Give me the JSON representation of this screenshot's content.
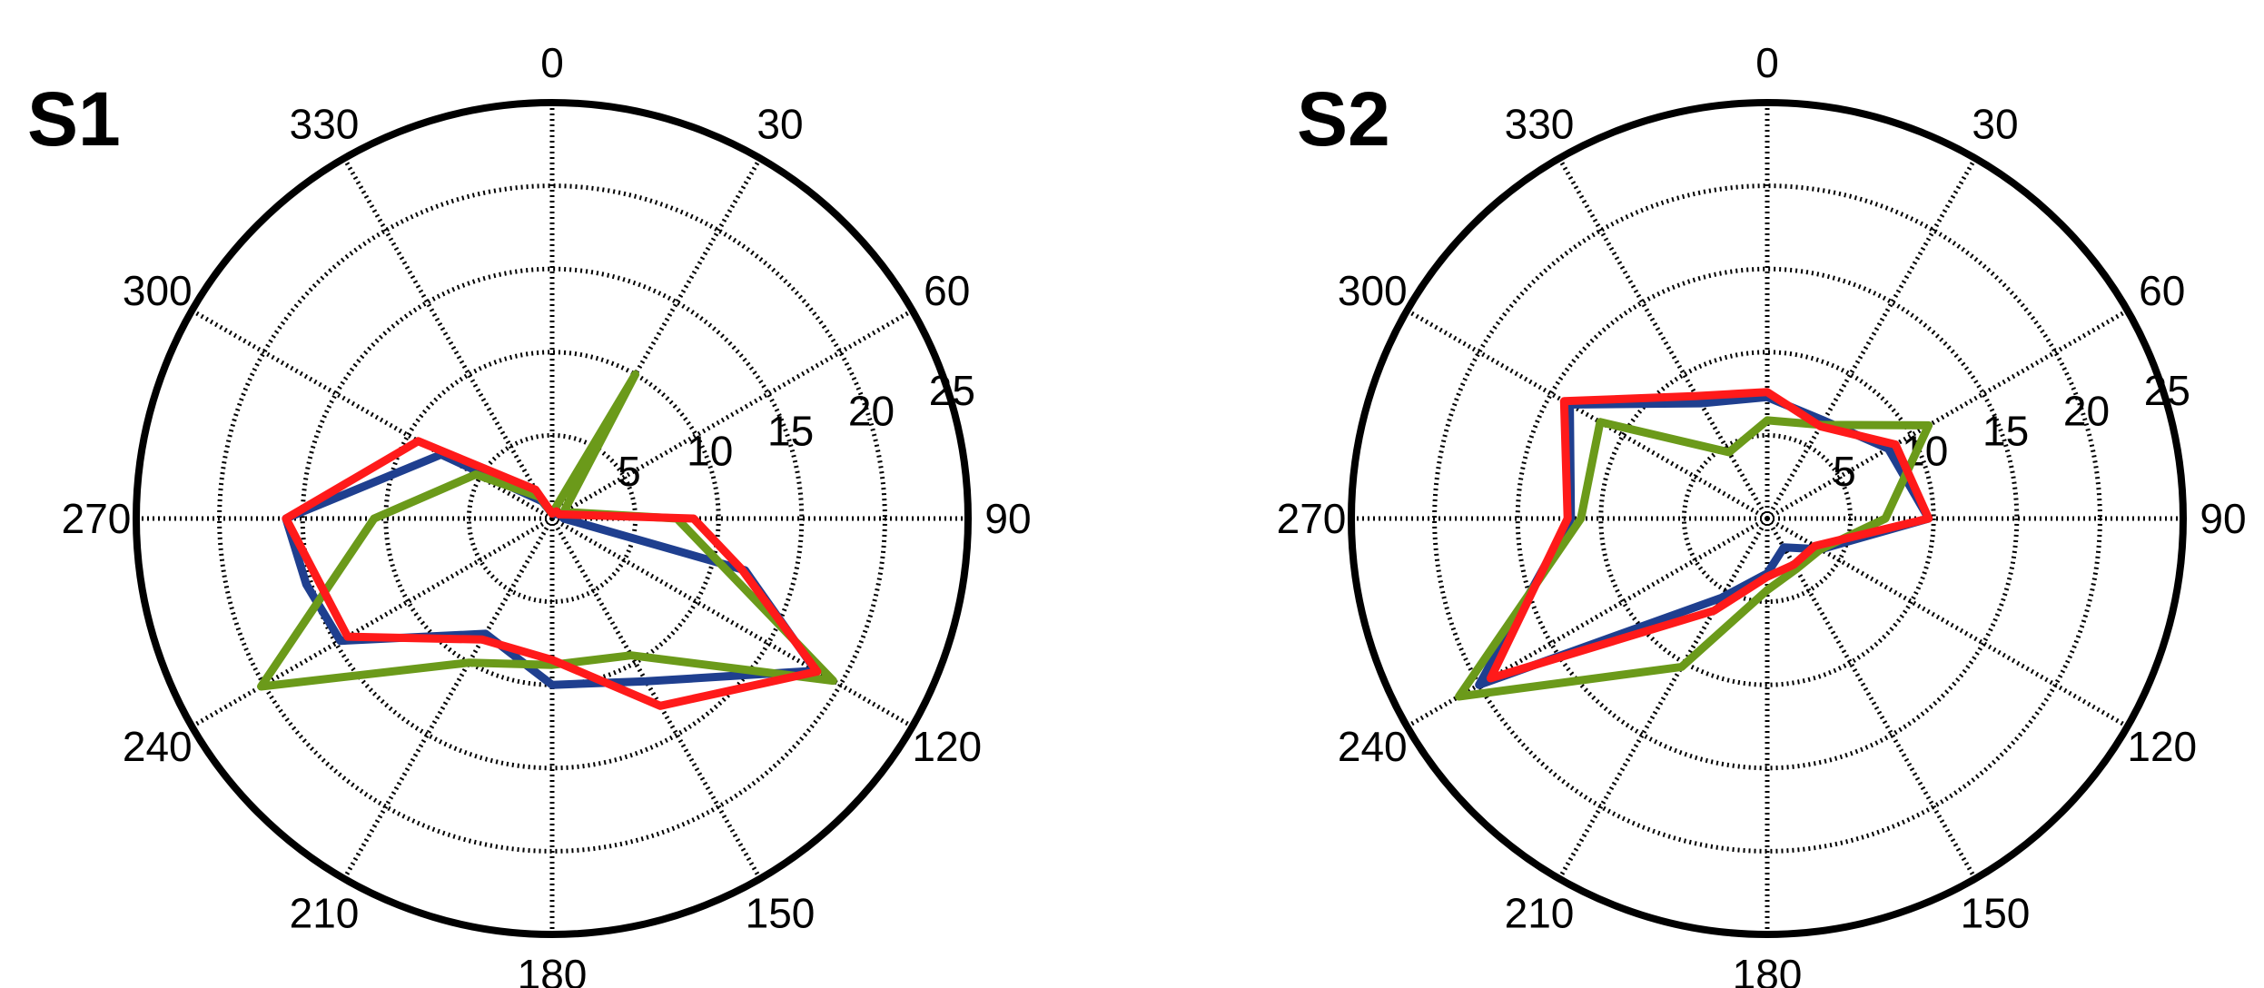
{
  "chart_data": [
    {
      "type": "polar",
      "panel_label": "S1",
      "angle_ticks": [
        0,
        30,
        60,
        90,
        120,
        150,
        180,
        210,
        240,
        270,
        300,
        330
      ],
      "angle_direction": "clockwise",
      "zero_location": "top",
      "radial_ticks": [
        5,
        10,
        15,
        20,
        25
      ],
      "rlim": [
        0,
        25
      ],
      "grid": true,
      "legend": "none",
      "series": [
        {
          "color": "#1f3f8f",
          "points": [
            [
              0,
              0.3
            ],
            [
              30,
              0.3
            ],
            [
              60,
              0.5
            ],
            [
              90,
              0.7
            ],
            [
              105,
              12
            ],
            [
              120,
              18.3
            ],
            [
              150,
              11.3
            ],
            [
              180,
              10
            ],
            [
              210,
              8
            ],
            [
              240,
              14.7
            ],
            [
              255,
              15.3
            ],
            [
              270,
              16
            ],
            [
              300,
              7.7
            ],
            [
              330,
              1.2
            ]
          ]
        },
        {
          "color": "#6b9a1a",
          "points": [
            [
              0,
              0.3
            ],
            [
              30,
              10
            ],
            [
              60,
              0.8
            ],
            [
              90,
              7.5
            ],
            [
              120,
              19.5
            ],
            [
              150,
              9.5
            ],
            [
              180,
              8.8
            ],
            [
              210,
              10
            ],
            [
              240,
              20.2
            ],
            [
              270,
              10.7
            ],
            [
              300,
              5.3
            ],
            [
              330,
              1.5
            ]
          ]
        },
        {
          "color": "#ff1a1a",
          "points": [
            [
              0,
              0.3
            ],
            [
              30,
              0.5
            ],
            [
              60,
              0.5
            ],
            [
              90,
              8.5
            ],
            [
              105,
              11.8
            ],
            [
              120,
              18.4
            ],
            [
              150,
              13
            ],
            [
              180,
              8.5
            ],
            [
              210,
              8.4
            ],
            [
              240,
              14.2
            ],
            [
              270,
              16
            ],
            [
              300,
              9.3
            ],
            [
              330,
              2
            ]
          ]
        }
      ]
    },
    {
      "type": "polar",
      "panel_label": "S2",
      "angle_ticks": [
        0,
        30,
        60,
        90,
        120,
        150,
        180,
        210,
        240,
        270,
        300,
        330
      ],
      "angle_direction": "clockwise",
      "zero_location": "top",
      "radial_ticks": [
        5,
        10,
        15,
        20,
        25
      ],
      "rlim": [
        0,
        25
      ],
      "grid": true,
      "legend": "none",
      "series": [
        {
          "color": "#1f3f8f",
          "points": [
            [
              0,
              7.3
            ],
            [
              30,
              6.8
            ],
            [
              60,
              8.4
            ],
            [
              90,
              9.7
            ],
            [
              120,
              3.7
            ],
            [
              150,
              2
            ],
            [
              180,
              3.3
            ],
            [
              210,
              5.5
            ],
            [
              240,
              20
            ],
            [
              270,
              11.8
            ],
            [
              300,
              13.7
            ],
            [
              330,
              8
            ]
          ]
        },
        {
          "color": "#6b9a1a",
          "points": [
            [
              0,
              5.9
            ],
            [
              30,
              6.5
            ],
            [
              60,
              11.2
            ],
            [
              90,
              7.1
            ],
            [
              120,
              3.7
            ],
            [
              150,
              3.5
            ],
            [
              180,
              4.3
            ],
            [
              210,
              10.3
            ],
            [
              240,
              21.4
            ],
            [
              270,
              11.2
            ],
            [
              300,
              11.6
            ],
            [
              330,
              4.6
            ]
          ]
        },
        {
          "color": "#ff1a1a",
          "points": [
            [
              0,
              7.6
            ],
            [
              30,
              6.4
            ],
            [
              60,
              8.9
            ],
            [
              90,
              9.7
            ],
            [
              120,
              3.3
            ],
            [
              150,
              3.2
            ],
            [
              180,
              3.5
            ],
            [
              210,
              6.4
            ],
            [
              240,
              19.2
            ],
            [
              270,
              12
            ],
            [
              300,
              14.1
            ],
            [
              330,
              8.5
            ]
          ]
        }
      ]
    }
  ]
}
